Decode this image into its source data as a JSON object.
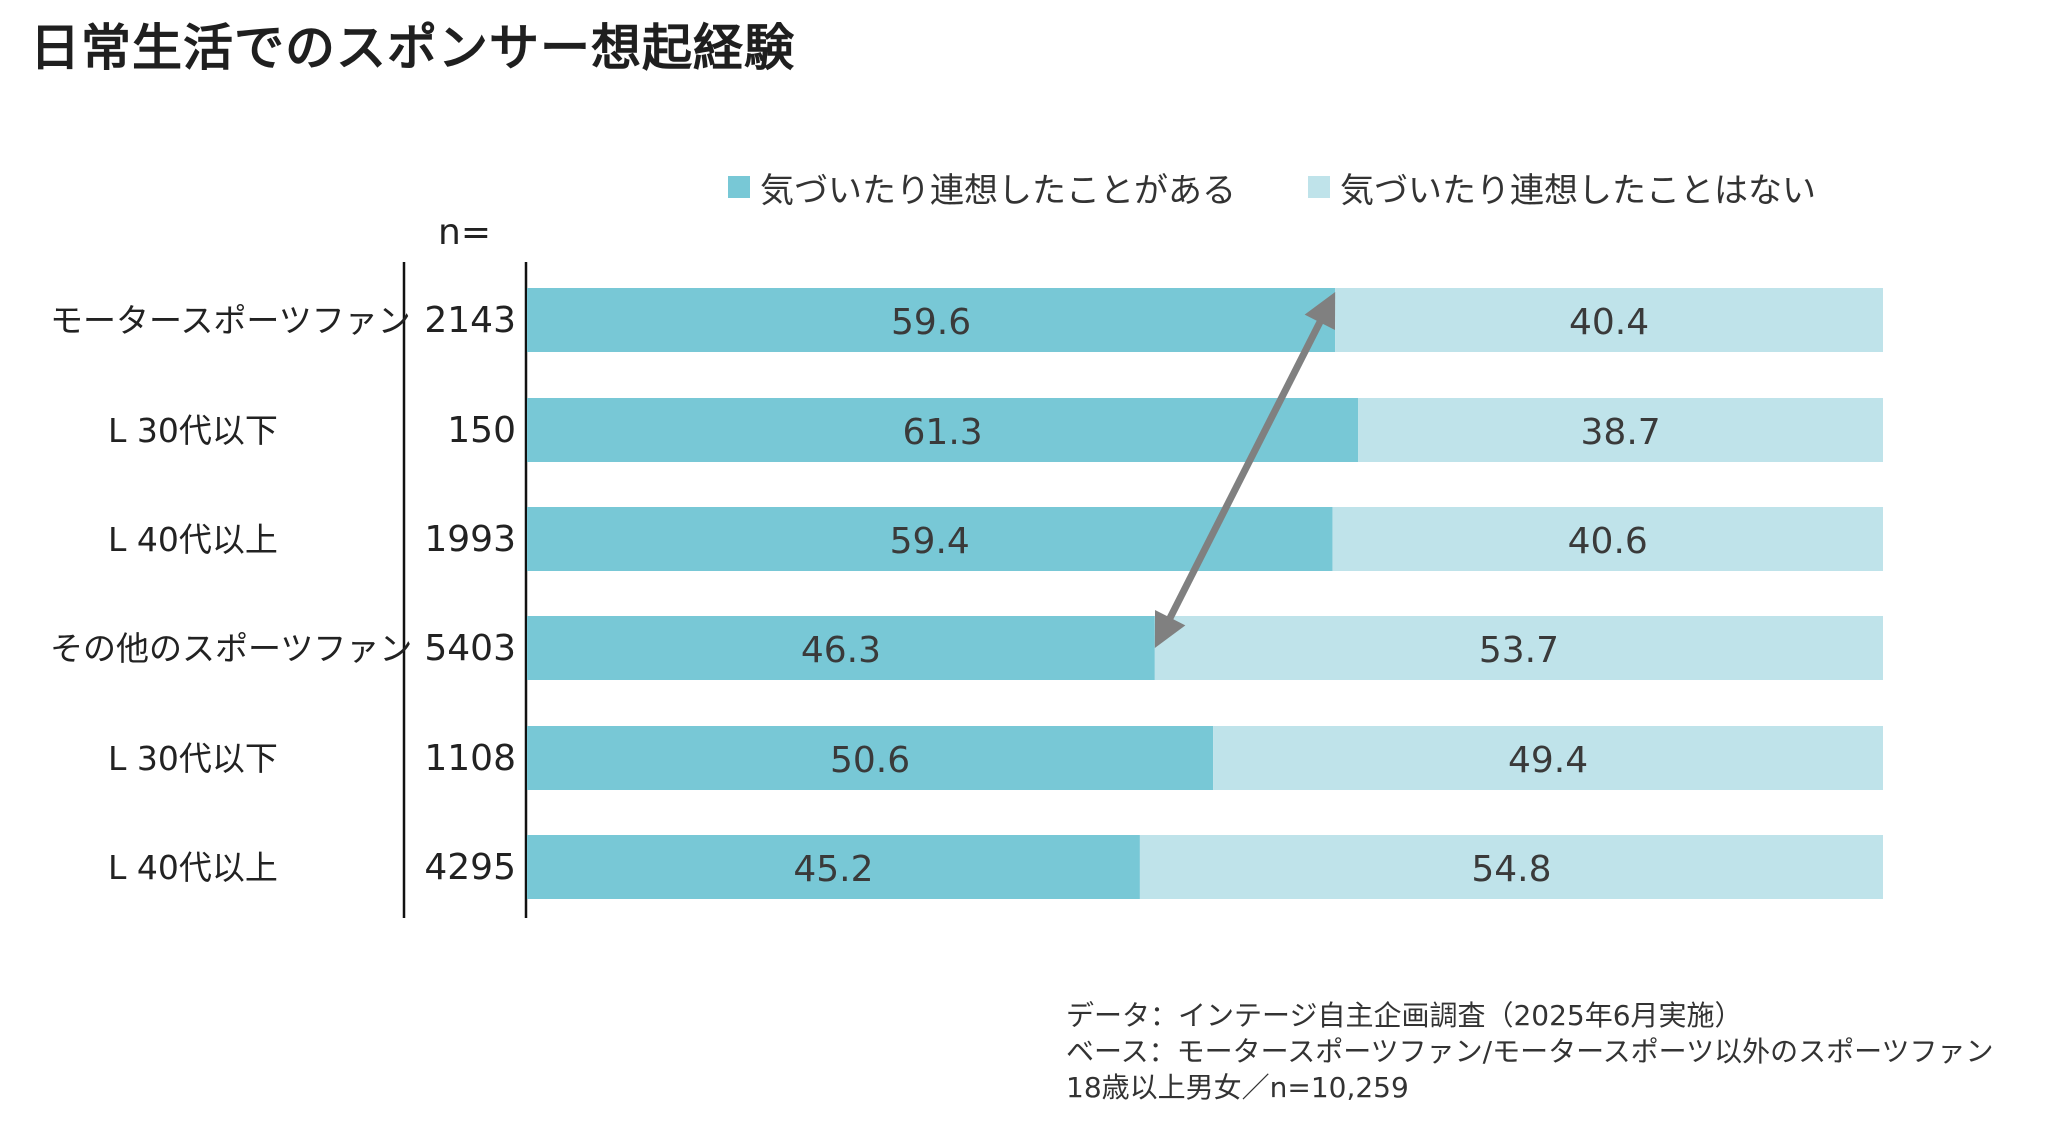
{
  "title": "日常生活でのスポンサー想起経験",
  "n_header": "n=",
  "legend": [
    {
      "label": "気づいたり連想したことがある",
      "color": "#78c8d6"
    },
    {
      "label": "気づいたり連想したことはない",
      "color": "#bfe3ea"
    }
  ],
  "chart_data": {
    "type": "bar",
    "orientation": "horizontal",
    "stacked": true,
    "percent_stacked": true,
    "categories": [
      "モータースポーツファン",
      "L 30代以下",
      "L 40代以上",
      "その他のスポーツファン",
      "L 30代以下",
      "L 40代以上"
    ],
    "n": [
      "2143",
      "150",
      "1993",
      "5403",
      "1108",
      "4295"
    ],
    "series": [
      {
        "name": "気づいたり連想したことがある",
        "values": [
          59.6,
          61.3,
          59.4,
          46.3,
          50.6,
          45.2
        ],
        "labels": [
          "59.6",
          "61.3",
          "59.4",
          "46.3",
          "50.6",
          "45.2"
        ],
        "color": "#78c8d6"
      },
      {
        "name": "気づいたり連想したことはない",
        "values": [
          40.4,
          38.7,
          40.6,
          53.7,
          49.4,
          54.8
        ],
        "labels": [
          "40.4",
          "38.7",
          "40.6",
          "53.7",
          "49.4",
          "54.8"
        ],
        "color": "#bfe3ea"
      }
    ],
    "xlim": [
      0,
      100
    ],
    "annotation": {
      "type": "double-arrow",
      "from_category": 0,
      "to_category": 3,
      "color": "#808080"
    }
  },
  "footnote": {
    "line1": "データ：インテージ自主企画調査（2025年6月実施）",
    "line2": "ベース：モータースポーツファン/モータースポーツ以外のスポーツファン",
    "line3": "18歳以上男女／n=10,259"
  }
}
